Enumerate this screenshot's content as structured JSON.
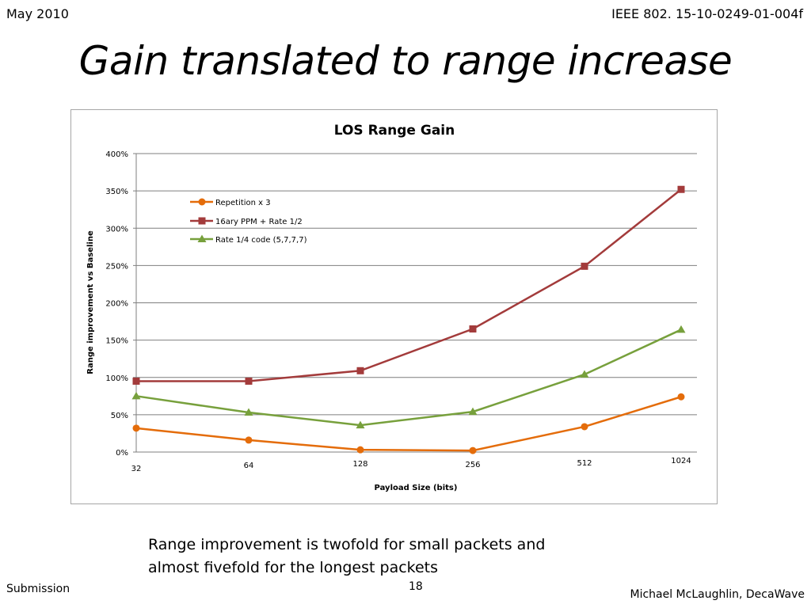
{
  "header": {
    "date": "May 2010",
    "doc_id": "IEEE 802. 15-10-0249-01-004f"
  },
  "slide": {
    "title": "Gain translated to range increase",
    "caption_line1": "Range improvement is twofold for small packets and",
    "caption_line2": "almost fivefold for the longest packets"
  },
  "footer": {
    "left": "Submission",
    "page": "18",
    "right": "Michael McLaughlin, DecaWave"
  },
  "chart_data": {
    "type": "line",
    "title": "LOS Range Gain",
    "xlabel": "Payload Size (bits)",
    "ylabel": "Range improvement vs Baseline",
    "categories": [
      "32",
      "64",
      "128",
      "256",
      "512",
      "1024"
    ],
    "yticks": [
      "0%",
      "50%",
      "100%",
      "150%",
      "200%",
      "250%",
      "300%",
      "350%",
      "400%"
    ],
    "ylim": [
      0,
      4
    ],
    "grid": true,
    "legend_position": "top-left",
    "series": [
      {
        "name": "Repetition x 3",
        "values": [
          0.32,
          0.16,
          0.03,
          0.02,
          0.34,
          0.74
        ],
        "color": "#e46c0a",
        "marker": "circle"
      },
      {
        "name": "16ary PPM + Rate  1/2",
        "values": [
          0.95,
          0.95,
          1.09,
          1.65,
          2.49,
          3.52
        ],
        "color": "#a33b3b",
        "marker": "square"
      },
      {
        "name": "Rate 1/4 code (5,7,7,7)",
        "values": [
          0.75,
          0.53,
          0.36,
          0.54,
          1.04,
          1.64
        ],
        "color": "#77a03c",
        "marker": "triangle"
      }
    ]
  }
}
